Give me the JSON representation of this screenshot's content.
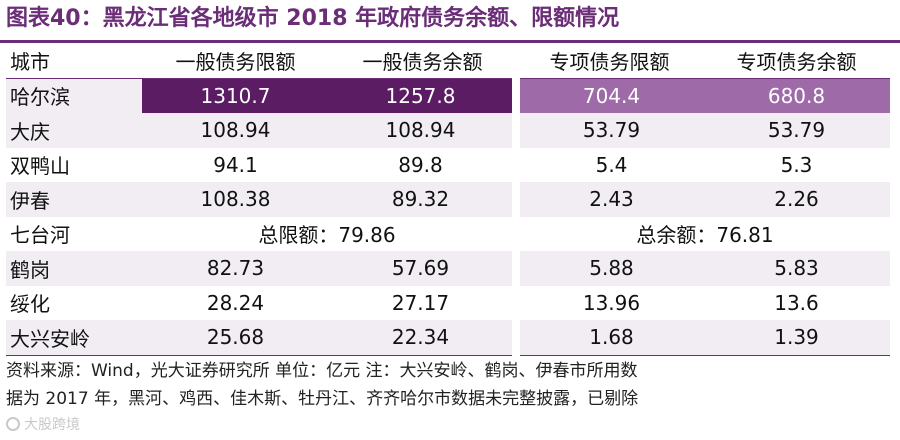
{
  "title": "图表40：黑龙江省各地级市 2018 年政府债务余额、限额情况",
  "headers": [
    "城市",
    "一般债务限额",
    "一般债务余额",
    "专项债务限额",
    "专项债务余额"
  ],
  "rows": [
    {
      "city": "哈尔滨",
      "v": [
        "1310.7",
        "1257.8",
        "704.4",
        "680.8"
      ]
    },
    {
      "city": "大庆",
      "v": [
        "108.94",
        "108.94",
        "53.79",
        "53.79"
      ]
    },
    {
      "city": "双鸭山",
      "v": [
        "94.1",
        "89.8",
        "5.4",
        "5.3"
      ]
    },
    {
      "city": "伊春",
      "v": [
        "108.38",
        "89.32",
        "2.43",
        "2.26"
      ]
    },
    {
      "city": "七台河",
      "merged_limit": "总限额：79.86",
      "merged_balance": "总余额：76.81"
    },
    {
      "city": "鹤岗",
      "v": [
        "82.73",
        "57.69",
        "5.88",
        "5.83"
      ]
    },
    {
      "city": "绥化",
      "v": [
        "28.24",
        "27.17",
        "13.96",
        "13.6"
      ]
    },
    {
      "city": "大兴安岭",
      "v": [
        "25.68",
        "22.34",
        "1.68",
        "1.39"
      ]
    }
  ],
  "note_line1": "资料来源：Wind，光大证券研究所 单位：亿元  注：大兴安岭、鹤岗、伊春市所用数",
  "note_line2": "据为 2017 年，黑河、鸡西、佳木斯、牡丹江、齐齐哈尔市数据未完整披露，已剔除",
  "watermark": "大股跨境",
  "colors": {
    "accent": "#6b2d78",
    "dark_bar": "#5c1c63",
    "light_bar": "#9e6ba8",
    "band": "#f1edf3"
  }
}
